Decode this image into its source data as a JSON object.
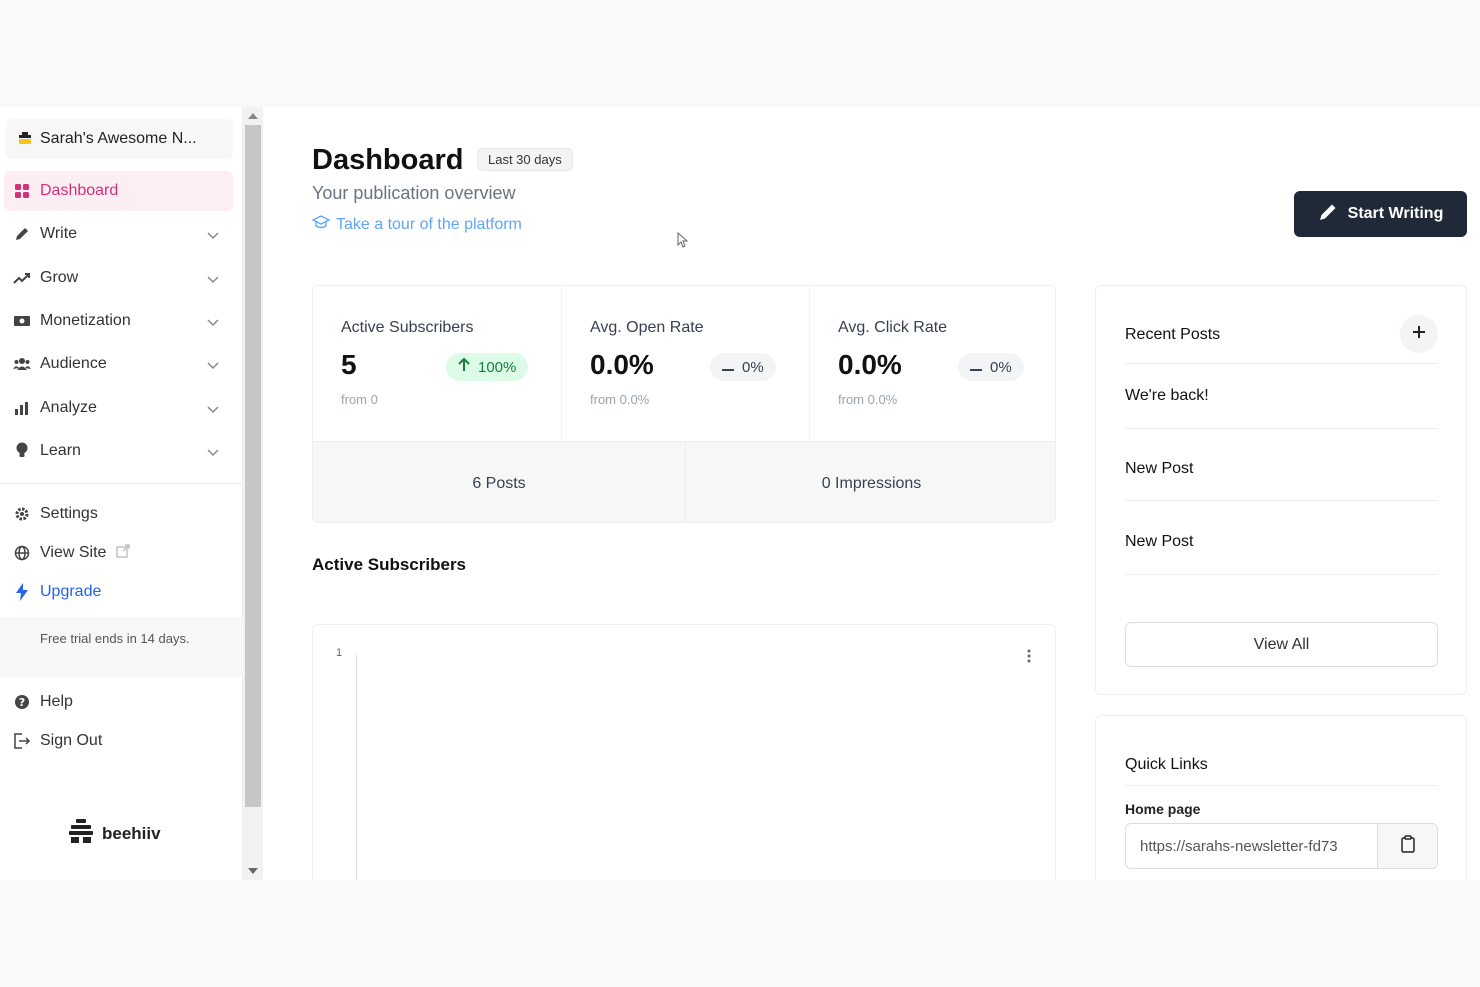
{
  "sidebar": {
    "publication_name": "Sarah's Awesome N...",
    "nav": [
      {
        "label": "Dashboard",
        "icon": "grid-icon"
      },
      {
        "label": "Write",
        "icon": "pencil-icon"
      },
      {
        "label": "Grow",
        "icon": "trending-up-icon"
      },
      {
        "label": "Monetization",
        "icon": "money-icon"
      },
      {
        "label": "Audience",
        "icon": "users-icon"
      },
      {
        "label": "Analyze",
        "icon": "bar-chart-icon"
      },
      {
        "label": "Learn",
        "icon": "lightbulb-icon"
      }
    ],
    "settings_label": "Settings",
    "view_site_label": "View Site",
    "upgrade_label": "Upgrade",
    "trial_text": "Free trial ends in 14 days.",
    "help_label": "Help",
    "sign_out_label": "Sign Out",
    "brand": "beehiiv"
  },
  "header": {
    "title": "Dashboard",
    "range_badge": "Last 30 days",
    "subtitle": "Your publication overview",
    "tour_link": "Take a tour of the platform",
    "start_writing": "Start Writing"
  },
  "stats": {
    "items": [
      {
        "label": "Active Subscribers",
        "value": "5",
        "delta": "100%",
        "from": "from 0"
      },
      {
        "label": "Avg. Open Rate",
        "value": "0.0%",
        "delta": "0%",
        "from": "from 0.0%"
      },
      {
        "label": "Avg. Click Rate",
        "value": "0.0%",
        "delta": "0%",
        "from": "from 0.0%"
      }
    ],
    "posts": "6 Posts",
    "impressions": "0 Impressions"
  },
  "chart": {
    "title": "Active Subscribers",
    "y_tick": "1"
  },
  "recent_posts": {
    "title": "Recent Posts",
    "posts": [
      "We're back!",
      "New Post",
      "New Post"
    ],
    "view_all": "View All"
  },
  "quick_links": {
    "title": "Quick Links",
    "home_label": "Home page",
    "home_url": "https://sarahs-newsletter-fd73"
  },
  "colors": {
    "accent": "#d5307a",
    "primary_button": "#1f2937",
    "link": "#2563eb",
    "positive": "#15803d"
  }
}
